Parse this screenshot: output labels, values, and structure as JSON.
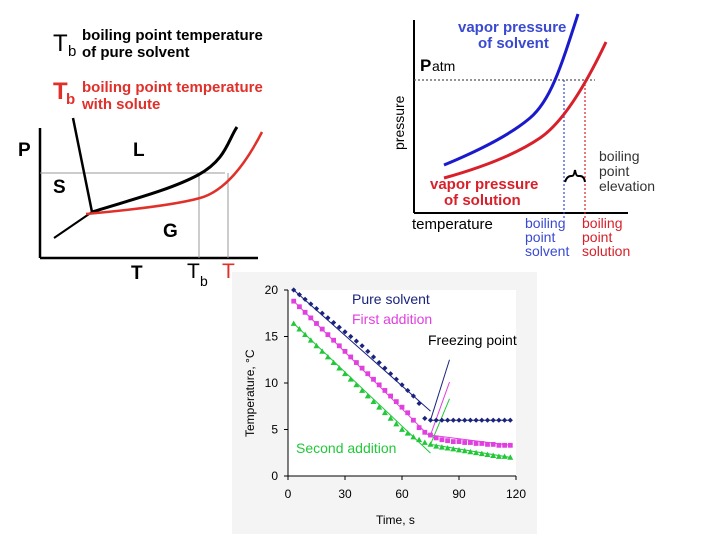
{
  "phase_diagram": {
    "legend": {
      "tb_symbol": "T",
      "tb_sub": "b",
      "tb_text_line1": "boiling point temperature",
      "tb_text_line2": "of pure solvent",
      "tb_solute_text_line1": "boiling point temperature",
      "tb_solute_text_line2": "with solute"
    },
    "axis_p": "P",
    "axis_t": "T",
    "region_l": "L",
    "region_s": "S",
    "region_g": "G",
    "tick_tb": "T",
    "tick_tb_sub": "b",
    "tick_tb_solute": "T",
    "colors": {
      "solvent": "#000000",
      "solution": "#e0302a",
      "legend_red": "#e0302a"
    }
  },
  "vapor_pressure": {
    "label_solvent_line1": "vapor pressure",
    "label_solvent_line2": "of solvent",
    "label_solution_line1": "vapor pressure",
    "label_solution_line2": "of solution",
    "patm": "P",
    "patm_sub": "atm",
    "ylabel": "pressure",
    "xlabel": "temperature",
    "elevation_line1": "boiling",
    "elevation_line2": "point",
    "elevation_line3": "elevation",
    "bp_solvent_line1": "boiling",
    "bp_solvent_line2": "point",
    "bp_solvent_line3": "solvent",
    "bp_solution_line1": "boiling",
    "bp_solution_line2": "point",
    "bp_solution_line3": "solution",
    "colors": {
      "solvent": "#1a1acc",
      "solution": "#d8202a",
      "label_blue": "#3a4ad0",
      "label_red": "#d8202a"
    }
  },
  "chart_data": {
    "type": "scatter",
    "xlabel": "Time, s",
    "ylabel": "Temperature,  °C",
    "x_ticks": [
      "0",
      "30",
      "60",
      "90",
      "120"
    ],
    "y_ticks": [
      "0",
      "5",
      "10",
      "15",
      "20"
    ],
    "xlim": [
      0,
      120
    ],
    "ylim": [
      0,
      20
    ],
    "annotation": "Freezing point",
    "series": [
      {
        "name": "Pure solvent",
        "color": "#1a237e",
        "marker": "diamond",
        "x": [
          3,
          6,
          9,
          12,
          15,
          18,
          21,
          24,
          27,
          30,
          33,
          36,
          39,
          42,
          45,
          48,
          51,
          54,
          57,
          60,
          63,
          66,
          69,
          72,
          75,
          78,
          81,
          84,
          87,
          90,
          93,
          96,
          99,
          102,
          105,
          108,
          111,
          114,
          117
        ],
        "y": [
          20.0,
          19.5,
          19.0,
          18.5,
          18.0,
          17.5,
          17.0,
          16.5,
          16.0,
          15.5,
          15.0,
          14.5,
          14.0,
          13.4,
          12.8,
          12.2,
          11.6,
          11.0,
          10.4,
          9.8,
          9.2,
          8.6,
          7.8,
          6.2,
          6.0,
          6.0,
          6.0,
          6.0,
          6.0,
          6.0,
          6.0,
          6.0,
          6.0,
          6.0,
          6.0,
          6.0,
          6.0,
          6.0,
          6.0
        ]
      },
      {
        "name": "First addition",
        "color": "#e040e0",
        "marker": "square",
        "x": [
          3,
          6,
          9,
          12,
          15,
          18,
          21,
          24,
          27,
          30,
          33,
          36,
          39,
          42,
          45,
          48,
          51,
          54,
          57,
          60,
          63,
          66,
          69,
          72,
          75,
          78,
          81,
          84,
          87,
          90,
          93,
          96,
          99,
          102,
          105,
          108,
          111,
          114,
          117
        ],
        "y": [
          18.8,
          18.2,
          17.6,
          17.0,
          16.4,
          15.8,
          15.2,
          14.6,
          14.0,
          13.4,
          12.8,
          12.2,
          11.6,
          11.0,
          10.4,
          9.8,
          9.2,
          8.6,
          8.0,
          7.4,
          6.8,
          6.0,
          5.2,
          4.7,
          4.4,
          4.1,
          3.9,
          3.8,
          3.7,
          3.7,
          3.6,
          3.6,
          3.5,
          3.5,
          3.4,
          3.4,
          3.3,
          3.3,
          3.3
        ]
      },
      {
        "name": "Second addition",
        "color": "#22c83a",
        "marker": "triangle",
        "x": [
          3,
          6,
          9,
          12,
          15,
          18,
          21,
          24,
          27,
          30,
          33,
          36,
          39,
          42,
          45,
          48,
          51,
          54,
          57,
          60,
          63,
          66,
          69,
          72,
          75,
          78,
          81,
          84,
          87,
          90,
          93,
          96,
          99,
          102,
          105,
          108,
          111,
          114,
          117
        ],
        "y": [
          16.4,
          15.8,
          15.2,
          14.6,
          14.0,
          13.4,
          12.8,
          12.2,
          11.6,
          11.0,
          10.4,
          9.8,
          9.2,
          8.6,
          8.0,
          7.4,
          6.8,
          6.2,
          5.6,
          5.0,
          4.6,
          4.2,
          3.9,
          3.6,
          3.4,
          3.2,
          3.1,
          3.0,
          2.9,
          2.8,
          2.7,
          2.6,
          2.5,
          2.4,
          2.3,
          2.2,
          2.1,
          2.1,
          2.0
        ]
      }
    ]
  }
}
